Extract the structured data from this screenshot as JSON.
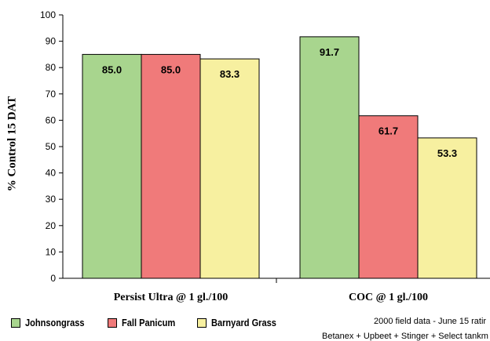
{
  "chart_data": {
    "type": "bar",
    "categories": [
      "Persist Ultra @ 1 gl./100",
      "COC @ 1 gl./100"
    ],
    "series": [
      {
        "name": "Johnsongrass",
        "color": "#a8d58e",
        "values": [
          85.0,
          91.7
        ]
      },
      {
        "name": "Fall Panicum",
        "color": "#f07a7a",
        "values": [
          85.0,
          61.7
        ]
      },
      {
        "name": "Barnyard Grass",
        "color": "#f7f0a0",
        "values": [
          83.3,
          53.3
        ]
      }
    ],
    "data_labels": [
      [
        "85.0",
        "91.7"
      ],
      [
        "85.0",
        "61.7"
      ],
      [
        "83.3",
        "53.3"
      ]
    ],
    "ylabel": "% Control 15 DAT",
    "xlabel": "",
    "ylim": [
      0,
      100
    ],
    "yticks": [
      0,
      10,
      20,
      30,
      40,
      50,
      60,
      70,
      80,
      90,
      100
    ],
    "grid": false,
    "legend_position": "bottom-left"
  },
  "footnotes": {
    "line1": "2000 field data - June 15 ratir",
    "line2": "Betanex + Upbeet + Stinger + Select tankm"
  }
}
